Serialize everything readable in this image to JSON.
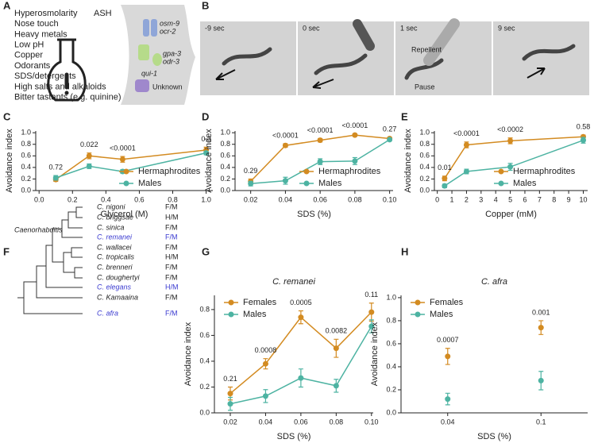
{
  "panel_labels": [
    "A",
    "B",
    "C",
    "D",
    "E",
    "F",
    "G",
    "H"
  ],
  "panel_a": {
    "neuron": "ASH",
    "stimuli": [
      "Hyperosmolarity",
      "Nose touch",
      "Heavy metals",
      "Low pH",
      "Copper",
      "Odorants",
      "SDS/detergents",
      "High salts and alkaloids",
      "Bitter tastants (e.g. quinine)"
    ],
    "genes": [
      "osm-9",
      "ocr-2",
      "gpa-3",
      "odr-3",
      "qui-1",
      "Unknown"
    ]
  },
  "panel_b": {
    "timepoints": [
      "-9 sec",
      "0 sec",
      "1 sec",
      "9 sec"
    ],
    "annotations": [
      "Repellent",
      "Pause"
    ]
  },
  "panel_f": {
    "genus": "Caenorhabditis",
    "species": [
      {
        "name": "C. nigoni",
        "sex": "F/M"
      },
      {
        "name": "C. briggsae",
        "sex": "H/M"
      },
      {
        "name": "C. sinica",
        "sex": "F/M"
      },
      {
        "name": "C. remanei",
        "sex": "F/M",
        "color": "#3a3ad0"
      },
      {
        "name": "C. wallacei",
        "sex": "F/M"
      },
      {
        "name": "C. tropicalis",
        "sex": "H/M"
      },
      {
        "name": "C. brenneri",
        "sex": "F/M"
      },
      {
        "name": "C. doughertyi",
        "sex": "F/M"
      },
      {
        "name": "C. elegans",
        "sex": "H/M",
        "color": "#3a3ad0"
      },
      {
        "name": "C. Kamaaina",
        "sex": "F/M"
      },
      {
        "name": "C. afra",
        "sex": "F/M",
        "color": "#3a3ad0"
      }
    ]
  },
  "chart_data": [
    {
      "type": "line",
      "x_label": "Glycerol (M)",
      "y_label": "Avoidance index",
      "x": [
        0.1,
        0.3,
        0.5,
        1
      ],
      "xlim": [
        -0.02,
        1.04
      ],
      "xticks": [
        {
          "value": 0,
          "label": "0.0"
        },
        0.2,
        0.4,
        0.6,
        0.8,
        {
          "value": 1,
          "label": "1.0"
        }
      ],
      "ylim": [
        0,
        1.03
      ],
      "yticks": [
        {
          "value": 0,
          "label": "0.0"
        },
        0.2,
        0.4,
        0.6,
        0.8,
        {
          "value": 1,
          "label": "1.0"
        }
      ],
      "legend": "lower right",
      "annotations": [
        "0.72",
        "0.022",
        "<0.0001",
        "0.3"
      ],
      "series": [
        {
          "name": "Hermaphrodites",
          "color": "#d38b21",
          "values": [
            0.19,
            0.6,
            0.54,
            0.7
          ],
          "errors": [
            0.03,
            0.05,
            0.05,
            0.05
          ]
        },
        {
          "name": "Males",
          "color": "#4db3a2",
          "values": [
            0.22,
            0.42,
            0.33,
            0.65
          ],
          "errors": [
            0.04,
            0.04,
            0.03,
            0.03
          ]
        }
      ]
    },
    {
      "type": "line",
      "x_label": "SDS (%)",
      "y_label": "Avoidance index",
      "x": [
        0.02,
        0.04,
        0.06,
        0.08,
        0.1
      ],
      "xlim": [
        0.011,
        0.102
      ],
      "xticks": [
        0.02,
        0.04,
        0.06,
        0.08,
        {
          "value": 0.1,
          "label": "0.10"
        }
      ],
      "ylim": [
        0,
        1.03
      ],
      "yticks": [
        {
          "value": 0,
          "label": "0.0"
        },
        0.2,
        0.4,
        0.6,
        0.8,
        {
          "value": 1,
          "label": "1.0"
        }
      ],
      "legend": "lower right",
      "annotations": [
        "0.29",
        "<0.0001",
        "<0.0001",
        "<0.0001",
        "0.27"
      ],
      "series": [
        {
          "name": "Hermaphrodites",
          "color": "#d38b21",
          "values": [
            0.16,
            0.78,
            0.87,
            0.96,
            0.9
          ],
          "errors": [
            0.04,
            0.03,
            0.03,
            0.02,
            0.02
          ]
        },
        {
          "name": "Males",
          "color": "#4db3a2",
          "values": [
            0.12,
            0.17,
            0.5,
            0.51,
            0.88
          ],
          "errors": [
            0.04,
            0.06,
            0.05,
            0.06,
            0.02
          ]
        }
      ]
    },
    {
      "type": "line",
      "x_label": "Copper (mM)",
      "y_label": "Avoidance index",
      "x": [
        0.5,
        2,
        5,
        10
      ],
      "xlim": [
        -0.2,
        10.3
      ],
      "xticks": [
        0,
        1,
        2,
        3,
        4,
        5,
        6,
        7,
        8,
        9,
        10
      ],
      "ylim": [
        0,
        1.03
      ],
      "yticks": [
        {
          "value": 0,
          "label": "0.0"
        },
        0.2,
        0.4,
        0.6,
        0.8,
        {
          "value": 1,
          "label": "1.0"
        }
      ],
      "legend": "lower right",
      "annotations": [
        "0.01",
        "<0.0001",
        "<0.0002",
        "0.58"
      ],
      "series": [
        {
          "name": "Hermaphrodites",
          "color": "#d38b21",
          "values": [
            0.21,
            0.79,
            0.86,
            0.93
          ],
          "errors": [
            0.04,
            0.05,
            0.05,
            0.03
          ]
        },
        {
          "name": "Males",
          "color": "#4db3a2",
          "values": [
            0.08,
            0.33,
            0.41,
            0.87
          ],
          "errors": [
            0.03,
            0.04,
            0.06,
            0.05
          ]
        }
      ]
    },
    {
      "type": "line",
      "title": "C. remanei",
      "x_label": "SDS (%)",
      "y_label": "Avoidance index",
      "x": [
        0.02,
        0.04,
        0.06,
        0.08,
        0.1
      ],
      "xlim": [
        0.011,
        0.101
      ],
      "xticks": [
        0.02,
        0.04,
        0.06,
        0.08,
        {
          "value": 0.1,
          "label": "0.10"
        }
      ],
      "ylim": [
        0,
        0.91
      ],
      "yticks": [
        {
          "value": 0,
          "label": "0.0"
        },
        0.2,
        0.4,
        0.6,
        0.8
      ],
      "legend": "upper left",
      "annotations": [
        "0.21",
        "0.0008",
        "0.0005",
        "0.0082",
        "0.11"
      ],
      "series": [
        {
          "name": "Females",
          "color": "#d38b21",
          "values": [
            0.15,
            0.38,
            0.74,
            0.5,
            0.78
          ],
          "errors": [
            0.05,
            0.04,
            0.05,
            0.07,
            0.07
          ]
        },
        {
          "name": "Males",
          "color": "#4db3a2",
          "values": [
            0.07,
            0.13,
            0.27,
            0.21,
            0.67
          ],
          "errors": [
            0.05,
            0.05,
            0.07,
            0.05,
            0.05
          ]
        }
      ]
    },
    {
      "type": "dot",
      "title": "C. afra",
      "x_label": "SDS (%)",
      "y_label": "Avoidance index",
      "categories": [
        "0.04",
        "0.1"
      ],
      "ylim": [
        0,
        1.02
      ],
      "yticks": [
        {
          "value": 0,
          "label": "0.0"
        },
        0.2,
        0.4,
        0.6,
        0.8,
        {
          "value": 1,
          "label": "1.0"
        }
      ],
      "legend": "upper left",
      "annotations": [
        "0.0007",
        "0.001"
      ],
      "series": [
        {
          "name": "Females",
          "color": "#d38b21",
          "values": [
            0.49,
            0.74
          ],
          "errors": [
            0.07,
            0.06
          ]
        },
        {
          "name": "Males",
          "color": "#4db3a2",
          "values": [
            0.12,
            0.28
          ],
          "errors": [
            0.05,
            0.08
          ]
        }
      ]
    }
  ]
}
